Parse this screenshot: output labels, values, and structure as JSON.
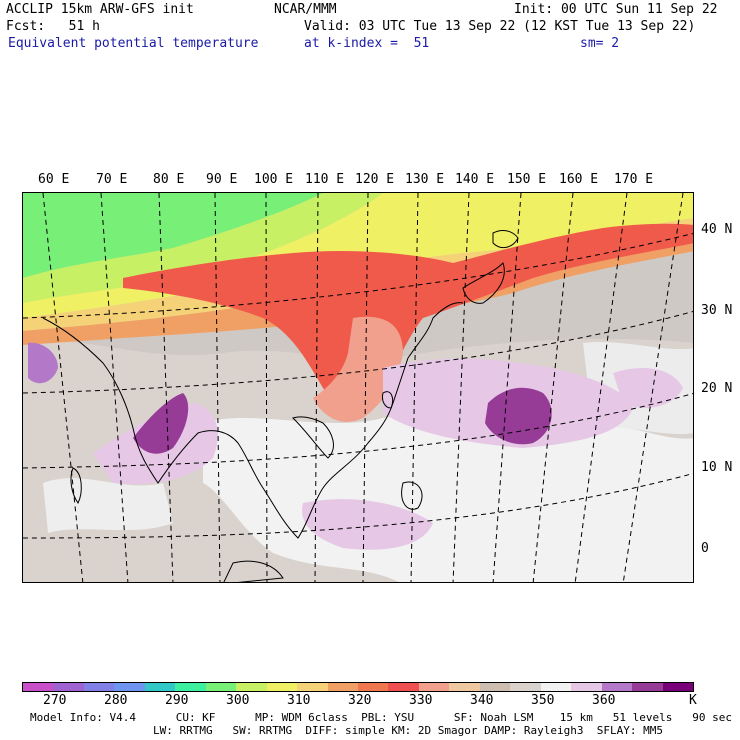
{
  "header": {
    "line1_left": "ACCLIP 15km ARW-GFS init",
    "line1_center": "NCAR/MMM",
    "line1_right": "Init: 00 UTC Sun 11 Sep 22",
    "line2_left": "Fcst:   51 h",
    "line2_right": "Valid: 03 UTC Tue 13 Sep 22 (12 KST Tue 13 Sep 22)",
    "line3_field": "Equivalent potential temperature",
    "line3_level": "at k-index =  51",
    "line3_smooth": "sm= 2"
  },
  "map": {
    "lon_labels": [
      "60 E",
      "70 E",
      "80 E",
      "90 E",
      "100 E",
      "110 E",
      "120 E",
      "130 E",
      "140 E",
      "150 E",
      "160 E",
      "170 E"
    ],
    "lat_labels": [
      "40 N",
      "30 N",
      "20 N",
      "10 N",
      "0"
    ]
  },
  "colorbar": {
    "colors": [
      "#c850c8",
      "#a064d2",
      "#8080e6",
      "#6e96f0",
      "#32c8c8",
      "#3cf0a0",
      "#78f078",
      "#c8f064",
      "#f0f064",
      "#f5d278",
      "#f0a064",
      "#f07850",
      "#f05050",
      "#f0a08c",
      "#f0c8a0",
      "#cdbcb0",
      "#d9d2cd",
      "#f2f2f2",
      "#e6c8e6",
      "#b478c8",
      "#963c96",
      "#780078"
    ],
    "labels": [
      "270",
      "280",
      "290",
      "300",
      "310",
      "320",
      "330",
      "340",
      "350",
      "360",
      "K"
    ]
  },
  "footer": {
    "line1": "Model Info: V4.4      CU: KF      MP: WDM 6class  PBL: YSU      SF: Noah LSM    15 km   51 levels   90 sec",
    "line2": "LW: RRTMG   SW: RRTMG  DIFF: simple KM: 2D Smagor DAMP: Rayleigh3  SFLAY: MM5"
  }
}
